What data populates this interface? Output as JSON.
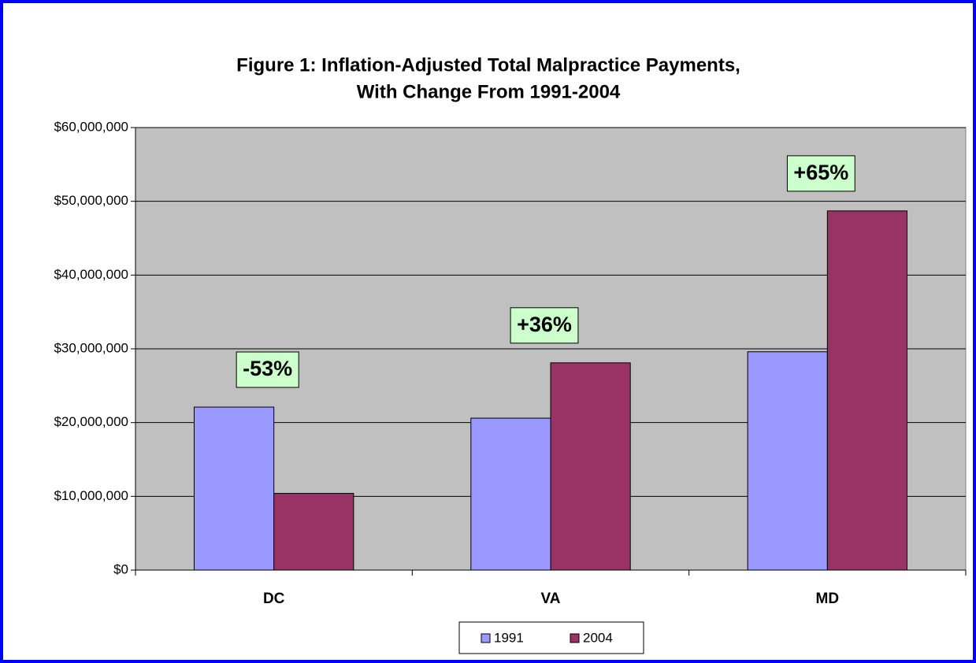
{
  "chart_data": {
    "type": "bar",
    "title": "Figure 1: Inflation-Adjusted Total Malpractice Payments,",
    "subtitle": "With Change From 1991-2004",
    "categories": [
      "DC",
      "VA",
      "MD"
    ],
    "series": [
      {
        "name": "1991",
        "color": "#9999ff",
        "values": [
          22100000,
          20600000,
          29600000
        ]
      },
      {
        "name": "2004",
        "color": "#993366",
        "values": [
          10400000,
          28100000,
          48700000
        ]
      }
    ],
    "annotations": [
      "-53%",
      "+36%",
      "+65%"
    ],
    "ylim": [
      0,
      60000000
    ],
    "yticks": [
      {
        "value": 0,
        "label": "$0"
      },
      {
        "value": 10000000,
        "label": "$10,000,000"
      },
      {
        "value": 20000000,
        "label": "$20,000,000"
      },
      {
        "value": 30000000,
        "label": "$30,000,000"
      },
      {
        "value": 40000000,
        "label": "$40,000,000"
      },
      {
        "value": 50000000,
        "label": "$50,000,000"
      },
      {
        "value": 60000000,
        "label": "$60,000,000"
      }
    ],
    "grid": true,
    "legend": "bottom"
  }
}
